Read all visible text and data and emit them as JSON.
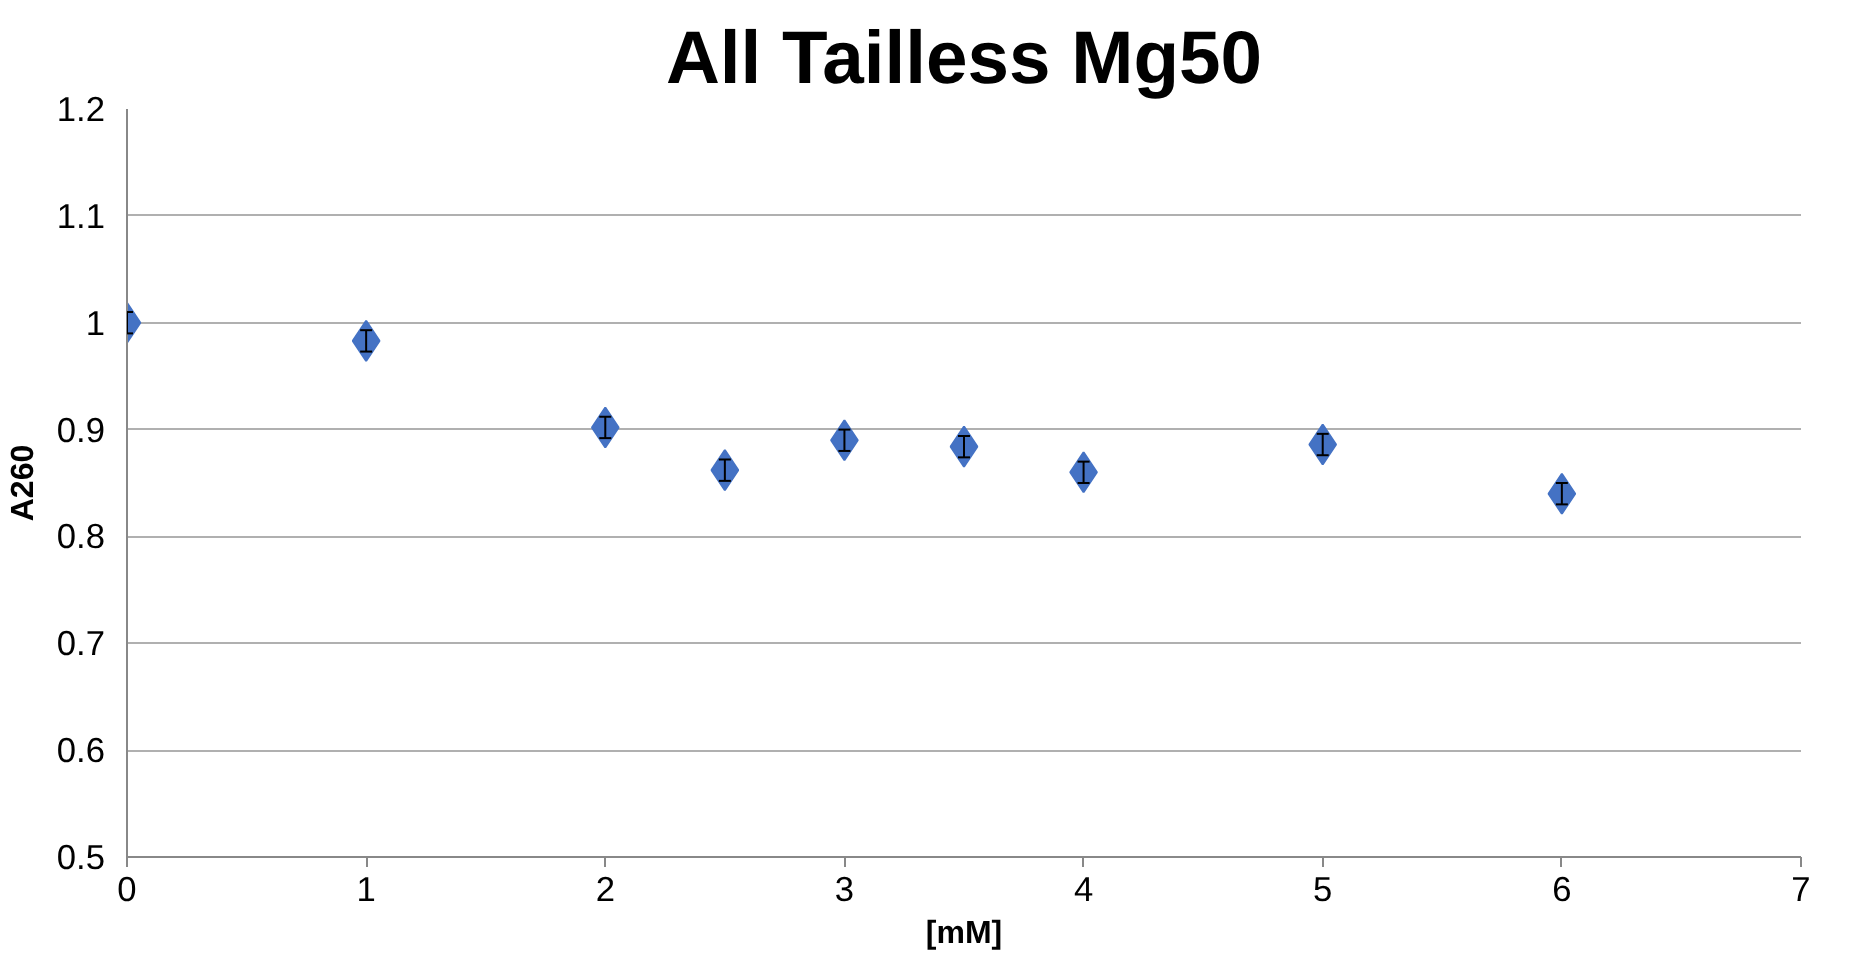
{
  "chart_data": {
    "type": "scatter",
    "title": "All Tailless Mg50",
    "xlabel": "[mM]",
    "ylabel": "A260",
    "x": [
      0,
      1,
      2,
      2.5,
      3,
      3.5,
      4,
      5,
      6
    ],
    "series": [
      {
        "color": "#4472c4",
        "values": [
          1.0,
          0.983,
          0.902,
          0.862,
          0.89,
          0.884,
          0.86,
          0.886,
          0.84
        ],
        "errors": [
          0.01,
          0.01,
          0.01,
          0.01,
          0.01,
          0.01,
          0.01,
          0.01,
          0.01
        ]
      }
    ],
    "xlim": [
      0,
      7
    ],
    "xticks": [
      0,
      1,
      2,
      3,
      4,
      5,
      6,
      7
    ],
    "ylim": [
      0.5,
      1.2
    ],
    "yticks": [
      0.5,
      0.6,
      0.7,
      0.8,
      0.9,
      1,
      1.1,
      1.2
    ],
    "grid": "y",
    "marker": "diamond"
  }
}
